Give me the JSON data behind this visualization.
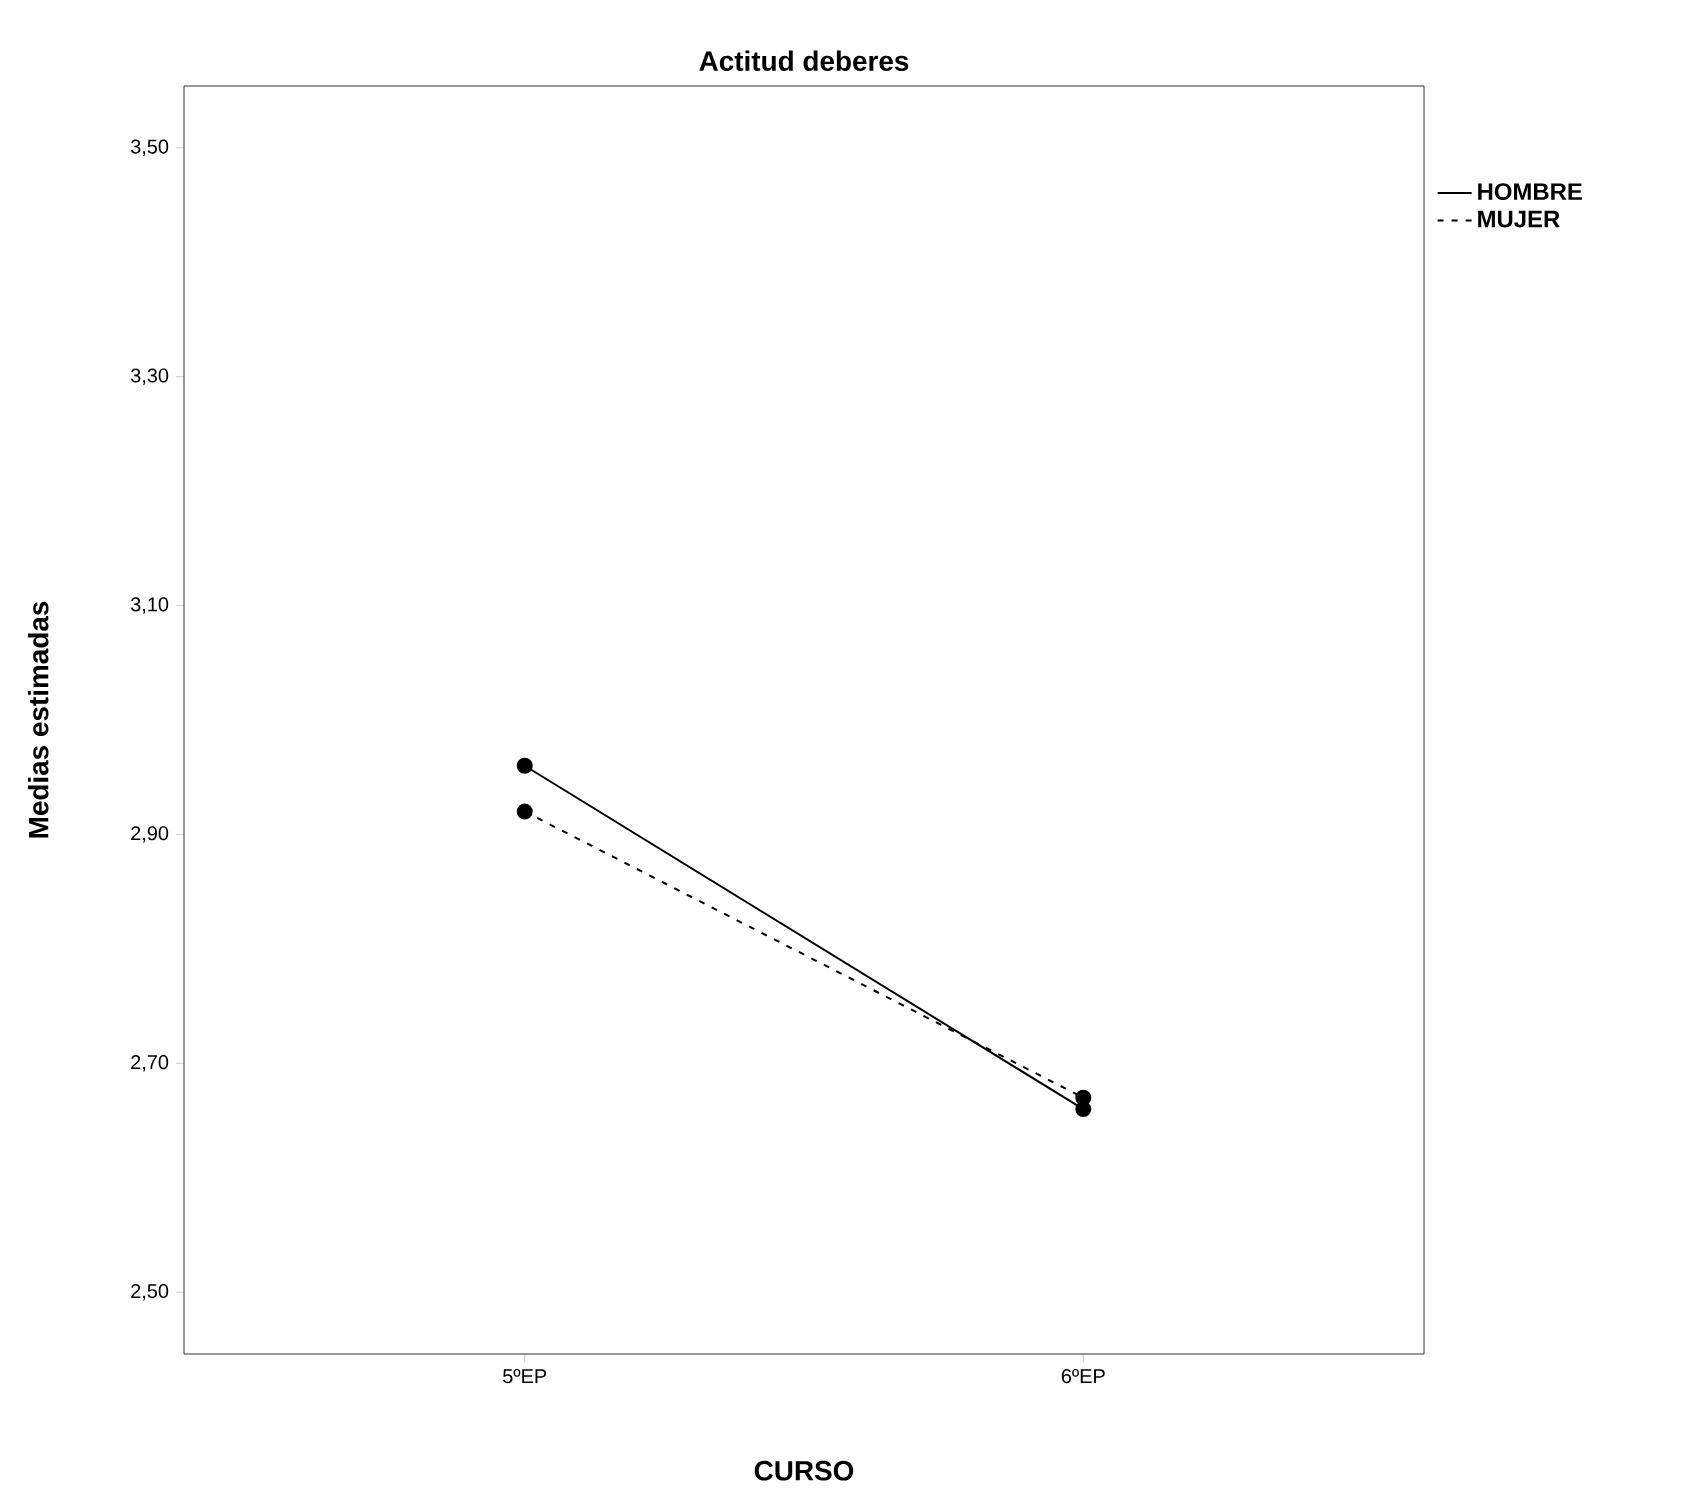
{
  "chart_data": {
    "type": "line",
    "title": "Actitud deberes",
    "xlabel": "CURSO",
    "ylabel": "Medias estimadas",
    "categories": [
      "5ºEP",
      "6ºEP"
    ],
    "series": [
      {
        "name": "HOMBRE",
        "color": "#000000",
        "values": [
          2.96,
          2.66
        ],
        "line_style": "solid"
      },
      {
        "name": "MUJER",
        "color": "#000000",
        "values": [
          2.92,
          2.67
        ],
        "line_style": "dashed"
      }
    ],
    "ylim": [
      2.446,
      3.554
    ],
    "yticks": [
      {
        "value": 2.5,
        "label": "2,50"
      },
      {
        "value": 2.7,
        "label": "2,70"
      },
      {
        "value": 2.9,
        "label": "2,90"
      },
      {
        "value": 3.1,
        "label": "3,10"
      },
      {
        "value": 3.3,
        "label": "3,30"
      },
      {
        "value": 3.5,
        "label": "3,50"
      }
    ],
    "grid": false,
    "legend": "top right",
    "marker": "circle"
  }
}
